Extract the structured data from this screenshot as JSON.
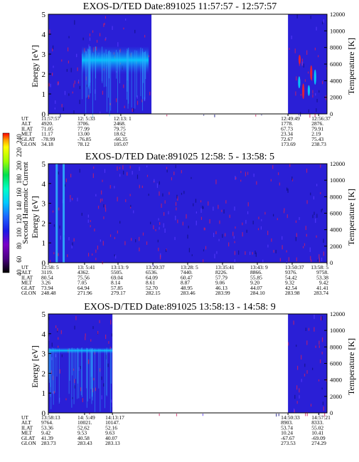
{
  "colorbar": {
    "label": "Second Harmonic Current",
    "ticks": [
      40,
      60,
      80,
      100,
      120,
      140,
      160,
      180,
      200,
      220,
      240
    ],
    "colors": [
      "#000000",
      "#4b0082",
      "#7a00c8",
      "#1a1ae6",
      "#1e64ff",
      "#00c8ff",
      "#00ffc8",
      "#00e050",
      "#a0ff00",
      "#ffff00",
      "#ffa000",
      "#ff0000"
    ]
  },
  "chart_data": [
    {
      "type": "heatmap",
      "title": "EXOS-D/TED   Date:891025  11:57:57 - 12:57:57",
      "ylabel": "Energy [eV]",
      "ylim": [
        0,
        5
      ],
      "yticks": [
        "0",
        "1",
        "2",
        "3",
        "4",
        "5"
      ],
      "y2label": "Temperature [K]",
      "y2lim": [
        0,
        12000
      ],
      "y2ticks": [
        "0",
        "2000",
        "4000",
        "6000",
        "8000",
        "10000",
        "12000"
      ],
      "data_gaps": [
        [
          0.37,
          0.86
        ]
      ],
      "features": [
        {
          "kind": "band",
          "x0": 0.12,
          "x1": 0.36,
          "y0": 2.0,
          "y1": 3.4,
          "note": "enhanced emission"
        },
        {
          "kind": "spikes",
          "x0": 0.86,
          "x1": 1.0
        }
      ],
      "table": {
        "row_labels": [
          "UT",
          "ALT",
          "ILAT",
          "MLT",
          "GLAT",
          "GLON"
        ],
        "columns": [
          {
            "x": 0.0,
            "values": [
              "11:57:57",
              "4920.",
              "71.05",
              "11.17",
              "-78.99",
              "34.18"
            ]
          },
          {
            "x": 0.13,
            "values": [
              "12: 5:33",
              "3706.",
              "77.99",
              "13.00",
              "-76.85",
              "78.12"
            ]
          },
          {
            "x": 0.26,
            "values": [
              "12:13: 1",
              "2468.",
              "79.75",
              "18.62",
              "-66.35",
              "105.07"
            ]
          },
          {
            "x": 0.86,
            "values": [
              "12:49:49",
              "1778.",
              "67.73",
              "23.34",
              "72.67",
              "173.69"
            ]
          },
          {
            "x": 0.97,
            "values": [
              "12:56:37",
              "2876.",
              "79.91",
              "2.19",
              "75.43",
              "238.73"
            ]
          }
        ]
      }
    },
    {
      "type": "heatmap",
      "title": "EXOS-D/TED   Date:891025  12:58: 5 - 13:58: 5",
      "ylabel": "Energy [eV]",
      "ylim": [
        0,
        5
      ],
      "yticks": [
        "0",
        "1",
        "2",
        "3",
        "4",
        "5"
      ],
      "y2label": "Temperature [K]",
      "y2lim": [
        0,
        12000
      ],
      "y2ticks": [
        "0",
        "2000",
        "4000",
        "6000",
        "8000",
        "10000",
        "12000"
      ],
      "data_gaps": [],
      "features": [
        {
          "kind": "lines",
          "x": [
            0.03,
            0.055
          ],
          "note": "vertical bursts"
        }
      ],
      "table": {
        "row_labels": [
          "UT",
          "ALT",
          "ILAT",
          "MLT",
          "GLAT",
          "GLON"
        ],
        "columns": [
          {
            "x": 0.0,
            "values": [
              "12:58: 5",
              "3119.",
              "80.54",
              "3.26",
              "73.94",
              "248.48"
            ]
          },
          {
            "x": 0.13,
            "values": [
              "13: 5:41",
              "4362.",
              "75.56",
              "7.05",
              "64.94",
              "271.96"
            ]
          },
          {
            "x": 0.25,
            "values": [
              "13:13: 9",
              "5505.",
              "69.04",
              "8.14",
              "57.85",
              "279.17"
            ]
          },
          {
            "x": 0.375,
            "values": [
              "13:20:37",
              "6536.",
              "64.09",
              "8.61",
              "52.70",
              "282.15"
            ]
          },
          {
            "x": 0.5,
            "values": [
              "13:28: 5",
              "7440.",
              "60.47",
              "8.87",
              "48.95",
              "283.46"
            ]
          },
          {
            "x": 0.625,
            "values": [
              "13:35:41",
              "8226.",
              "57.79",
              "9.06",
              "46.13",
              "283.99"
            ]
          },
          {
            "x": 0.75,
            "values": [
              "13:43: 9",
              "8866.",
              "55.85",
              "9.20",
              "44.07",
              "284.10"
            ]
          },
          {
            "x": 0.875,
            "values": [
              "13:50:37",
              "9376.",
              "54.42",
              "9.32",
              "42.54",
              "283.98"
            ]
          },
          {
            "x": 1.0,
            "values": [
              "13:58: 5",
              "9758.",
              "53.38",
              "9.42",
              "41.41",
              "283.74"
            ]
          }
        ]
      }
    },
    {
      "type": "heatmap",
      "title": "EXOS-D/TED   Date:891025  13:58:13 - 14:58: 9",
      "ylabel": "Energy [eV]",
      "ylim": [
        0,
        5
      ],
      "yticks": [
        "0",
        "1",
        "2",
        "3",
        "4",
        "5"
      ],
      "y2label": "Temperature [K]",
      "y2lim": [
        0,
        12000
      ],
      "y2ticks": [
        "0",
        "2000",
        "4000",
        "6000",
        "8000",
        "10000",
        "12000"
      ],
      "data_gaps": [
        [
          0.23,
          0.86
        ]
      ],
      "features": [
        {
          "kind": "band",
          "x0": 0.0,
          "x1": 0.23,
          "y0": 3.0,
          "y1": 3.3,
          "note": "narrow line"
        }
      ],
      "table": {
        "row_labels": [
          "UT",
          "ALT",
          "ILAT",
          "MLT",
          "GLAT",
          "GLON"
        ],
        "columns": [
          {
            "x": 0.0,
            "values": [
              "13:58:13",
              "9764.",
              "53.36",
              "9.42",
              "41.39",
              "283.73"
            ]
          },
          {
            "x": 0.13,
            "values": [
              "14: 5:49",
              "10021.",
              "52.62",
              "9.53",
              "40.58",
              "283.43"
            ]
          },
          {
            "x": 0.23,
            "values": [
              "14:13:17",
              "10147.",
              "52.16",
              "9.63",
              "40.07",
              "283.13"
            ]
          },
          {
            "x": 0.86,
            "values": [
              "14:50:33",
              "8903.",
              "53.74",
              "10.24",
              "-67.67",
              "273.53"
            ]
          },
          {
            "x": 0.97,
            "values": [
              "14:57:21",
              "8333.",
              "55.02",
              "10.41",
              "-69.09",
              "274.29"
            ]
          }
        ]
      }
    }
  ]
}
